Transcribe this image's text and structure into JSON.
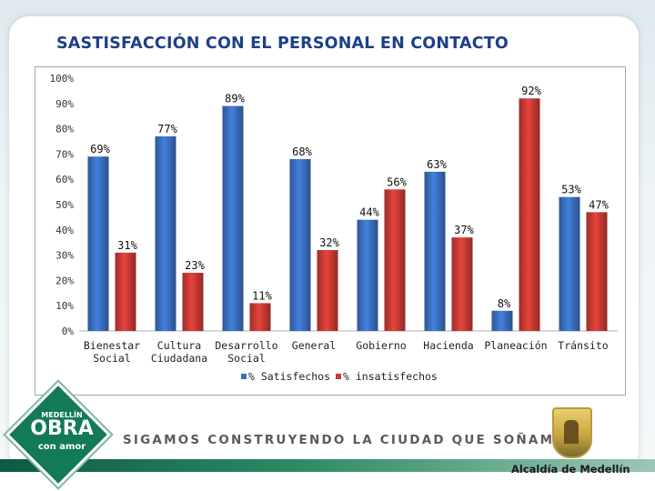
{
  "title": "SASTISFACCIÓN CON EL PERSONAL EN CONTACTO",
  "chart_data": {
    "type": "bar",
    "title": "SASTISFACCIÓN CON EL PERSONAL EN CONTACTO",
    "xlabel": "",
    "ylabel": "",
    "ylim": [
      0,
      100
    ],
    "yticks": [
      "0%",
      "10%",
      "20%",
      "30%",
      "40%",
      "50%",
      "60%",
      "70%",
      "80%",
      "90%",
      "100%"
    ],
    "grid": false,
    "legend_position": "bottom",
    "categories": [
      [
        "Bienestar",
        "Social"
      ],
      [
        "Cultura",
        "Ciudadana"
      ],
      [
        "Desarrollo",
        "Social"
      ],
      [
        "General"
      ],
      [
        "Gobierno"
      ],
      [
        "Hacienda"
      ],
      [
        "Planeación"
      ],
      [
        "Tránsito"
      ]
    ],
    "series": [
      {
        "name": "% Satisfechos",
        "color": "#3a6fc0",
        "values": [
          69,
          77,
          89,
          68,
          44,
          63,
          8,
          53
        ],
        "labels": [
          "69%",
          "77%",
          "89%",
          "68%",
          "44%",
          "63%",
          "8%",
          "53%"
        ]
      },
      {
        "name": "% insatisfechos",
        "color": "#c93a33",
        "values": [
          31,
          23,
          11,
          32,
          56,
          37,
          92,
          47
        ],
        "labels": [
          "31%",
          "23%",
          "11%",
          "32%",
          "56%",
          "37%",
          "92%",
          "47%"
        ]
      }
    ]
  },
  "footer": {
    "logo_line1": "MEDELLÍN",
    "logo_line2": "OBRA",
    "logo_line3": "con amor",
    "slogan": "SIGAMOS CONSTRUYENDO LA CIUDAD QUE SOÑAMOS",
    "municipality": "Alcaldía de Medellín"
  },
  "colors": {
    "title": "#1f3f8a",
    "footer_green": "#127a55"
  },
  "icons": {
    "logo": "medellin-obra-con-amor-logo",
    "seal": "medellin-coat-of-arms"
  }
}
